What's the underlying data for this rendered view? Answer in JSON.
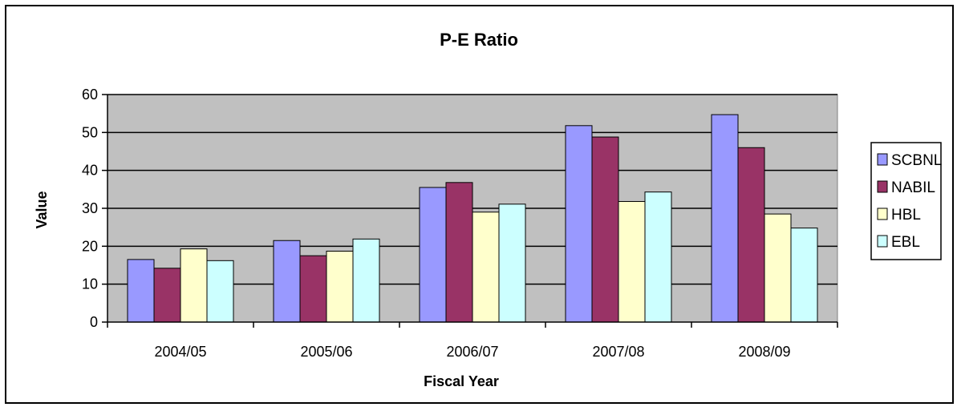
{
  "chart_data": {
    "type": "bar",
    "title": "P-E Ratio",
    "xlabel": "Fiscal Year",
    "ylabel": "Value",
    "ylim": [
      0,
      60
    ],
    "yticks": [
      0,
      10,
      20,
      30,
      40,
      50,
      60
    ],
    "grid": true,
    "legend_position": "right",
    "plot_background": "#c0c0c0",
    "categories": [
      "2004/05",
      "2005/06",
      "2006/07",
      "2007/08",
      "2008/09"
    ],
    "series": [
      {
        "name": "SCBNL",
        "color": "#9999ff",
        "values": [
          16.5,
          21.5,
          35.5,
          51.8,
          54.7
        ]
      },
      {
        "name": "NABIL",
        "color": "#993366",
        "values": [
          14.2,
          17.5,
          36.8,
          48.8,
          46.0
        ]
      },
      {
        "name": "HBL",
        "color": "#ffffcc",
        "values": [
          19.3,
          18.7,
          29.0,
          31.8,
          28.5
        ]
      },
      {
        "name": "EBL",
        "color": "#ccffff",
        "values": [
          16.2,
          21.9,
          31.1,
          34.3,
          24.8
        ]
      }
    ]
  }
}
